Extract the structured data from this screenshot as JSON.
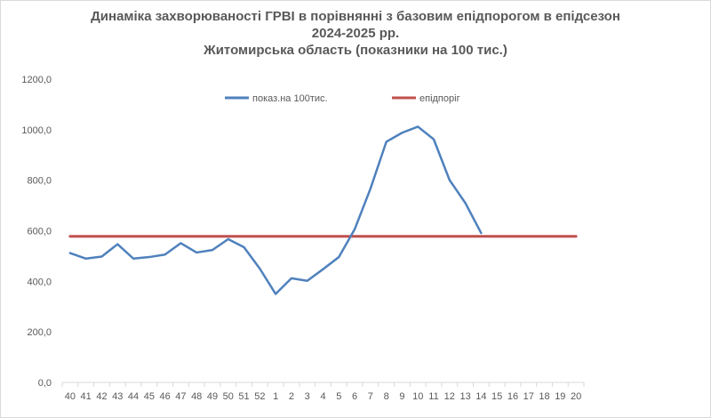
{
  "chart_data": {
    "type": "line",
    "title_lines": [
      "Динаміка захворюваності ГРВІ в порівнянні з базовим епідпорогом в епідсезон",
      "2024-2025 рр.",
      "Житомирська область (показники на 100 тис.)"
    ],
    "categories": [
      "40",
      "41",
      "42",
      "43",
      "44",
      "45",
      "46",
      "47",
      "48",
      "49",
      "50",
      "51",
      "52",
      "1",
      "2",
      "3",
      "4",
      "5",
      "6",
      "7",
      "8",
      "9",
      "10",
      "11",
      "12",
      "13",
      "14",
      "15",
      "16",
      "17",
      "18",
      "19",
      "20"
    ],
    "y_ticks": [
      "0,0",
      "200,0",
      "400,0",
      "600,0",
      "800,0",
      "1000,0",
      "1200,0"
    ],
    "ylim": [
      0,
      1200
    ],
    "grid": false,
    "legend_position": "top",
    "series": [
      {
        "name": "показ.на 100тис.",
        "color": "#4f81bd",
        "values": [
          512,
          490,
          498,
          547,
          490,
          496,
          506,
          551,
          514,
          524,
          567,
          535,
          450,
          350,
          412,
          402,
          448,
          496,
          606,
          767,
          952,
          988,
          1012,
          962,
          801,
          710,
          591,
          null,
          null,
          null,
          null,
          null,
          null
        ]
      },
      {
        "name": "епідпоріг",
        "color": "#c0504d",
        "values": [
          578,
          578,
          578,
          578,
          578,
          578,
          578,
          578,
          578,
          578,
          578,
          578,
          578,
          578,
          578,
          578,
          578,
          578,
          578,
          578,
          578,
          578,
          578,
          578,
          578,
          578,
          578,
          578,
          578,
          578,
          578,
          578,
          578
        ]
      }
    ]
  }
}
